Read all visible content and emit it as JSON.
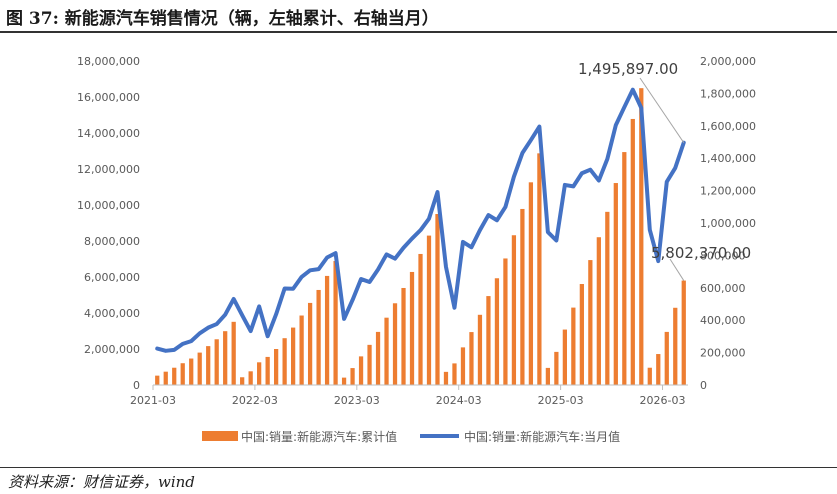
{
  "header": {
    "title": "图 37:  新能源汽车销售情况（辆，左轴累计、右轴当月）"
  },
  "footer": {
    "source": "资料来源：财信证券，wind"
  },
  "chart_data": {
    "type": "bar+line",
    "x_start": "2021-03",
    "x_tick_labels": [
      "2021-03",
      "2022-03",
      "2023-03",
      "2024-03",
      "2025-03",
      "2026-03"
    ],
    "left_axis": {
      "ylim": [
        0,
        18000000
      ],
      "tick_labels": [
        "0",
        "2,000,000",
        "4,000,000",
        "6,000,000",
        "8,000,000",
        "10,000,000",
        "12,000,000",
        "14,000,000",
        "16,000,000",
        "18,000,000"
      ]
    },
    "right_axis": {
      "ylim": [
        0,
        2000000
      ],
      "tick_labels": [
        "0",
        "200,000",
        "400,000",
        "600,000",
        "800,000",
        "1,000,000",
        "1,200,000",
        "1,400,000",
        "1,600,000",
        "1,800,000",
        "2,000,000"
      ]
    },
    "series": [
      {
        "name": "中国:销量:新能源汽车:累计值",
        "axis": "left",
        "kind": "bar",
        "color": "#ED7D31",
        "values": [
          520000,
          740000,
          960000,
          1210000,
          1470000,
          1800000,
          2160000,
          2540000,
          2990000,
          3510000,
          430000,
          760000,
          1260000,
          1560000,
          2000000,
          2600000,
          3190000,
          3860000,
          4560000,
          5280000,
          6060000,
          6890000,
          410000,
          940000,
          1590000,
          2230000,
          2950000,
          3740000,
          4540000,
          5390000,
          6280000,
          7280000,
          8300000,
          9500000,
          730000,
          1200000,
          2090000,
          2940000,
          3900000,
          4940000,
          5930000,
          7030000,
          8320000,
          9780000,
          11260000,
          12870000,
          950000,
          1840000,
          3080000,
          4300000,
          5610000,
          6940000,
          8210000,
          9620000,
          11220000,
          12940000,
          14780000,
          16490000,
          960000,
          1720000,
          2950000,
          4290000,
          5802370
        ]
      },
      {
        "name": "中国:销量:新能源汽车:当月值",
        "axis": "right",
        "kind": "line",
        "color": "#4472C4",
        "values": [
          225000,
          211000,
          217000,
          254000,
          271000,
          319000,
          354000,
          376000,
          434000,
          531000,
          431000,
          333000,
          485000,
          301000,
          437000,
          596000,
          594000,
          667000,
          708000,
          715000,
          787000,
          814000,
          408000,
          525000,
          654000,
          636000,
          713000,
          806000,
          780000,
          847000,
          904000,
          956000,
          1027000,
          1191000,
          729000,
          477000,
          883000,
          850000,
          956000,
          1049000,
          1017000,
          1099000,
          1286000,
          1432000,
          1512000,
          1595000,
          944000,
          892000,
          1235000,
          1226000,
          1307000,
          1329000,
          1262000,
          1395000,
          1604000,
          1715000,
          1823000,
          1710000,
          958000,
          765000,
          1254000,
          1340000,
          1495897
        ]
      }
    ],
    "annotations": [
      {
        "text": "1,495,897.00",
        "series": 1,
        "point": 62
      },
      {
        "text": "5,802,370.00",
        "series": 0,
        "point": 62
      }
    ],
    "legend": {
      "position": "bottom"
    },
    "grid": false
  }
}
